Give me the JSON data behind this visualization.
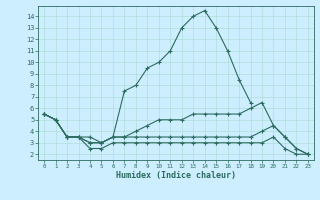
{
  "xlabel": "Humidex (Indice chaleur)",
  "bg_color": "#cceeff",
  "line_color": "#2d6b5e",
  "grid_color": "#b0ddd8",
  "xlim": [
    -0.5,
    23.5
  ],
  "ylim": [
    1.5,
    14.9
  ],
  "xticks": [
    0,
    1,
    2,
    3,
    4,
    5,
    6,
    7,
    8,
    9,
    10,
    11,
    12,
    13,
    14,
    15,
    16,
    17,
    18,
    19,
    20,
    21,
    22,
    23
  ],
  "yticks": [
    2,
    3,
    4,
    5,
    6,
    7,
    8,
    9,
    10,
    11,
    12,
    13,
    14
  ],
  "series": [
    {
      "x": [
        0,
        1,
        2,
        3,
        4,
        5,
        6,
        7,
        8,
        9,
        10,
        11,
        12,
        13,
        14,
        15,
        16,
        17,
        18
      ],
      "y": [
        5.5,
        5.0,
        3.5,
        3.5,
        3.0,
        3.0,
        3.5,
        7.5,
        8.0,
        9.5,
        10.0,
        11.0,
        13.0,
        14.0,
        14.5,
        13.0,
        11.0,
        8.5,
        6.5
      ]
    },
    {
      "x": [
        0,
        1,
        2,
        3,
        4,
        5,
        6,
        7,
        8,
        9,
        10,
        11,
        12,
        13,
        14,
        15,
        16,
        17,
        18,
        19,
        20,
        21,
        22,
        23
      ],
      "y": [
        5.5,
        5.0,
        3.5,
        3.5,
        3.0,
        3.0,
        3.5,
        3.5,
        4.0,
        4.5,
        5.0,
        5.0,
        5.0,
        5.5,
        5.5,
        5.5,
        5.5,
        5.5,
        6.0,
        6.5,
        4.5,
        3.5,
        2.5,
        2.0
      ]
    },
    {
      "x": [
        0,
        1,
        2,
        3,
        4,
        5,
        6,
        7,
        8,
        9,
        10,
        11,
        12,
        13,
        14,
        15,
        16,
        17,
        18,
        19,
        20,
        21,
        22,
        23
      ],
      "y": [
        5.5,
        5.0,
        3.5,
        3.5,
        3.5,
        3.0,
        3.5,
        3.5,
        3.5,
        3.5,
        3.5,
        3.5,
        3.5,
        3.5,
        3.5,
        3.5,
        3.5,
        3.5,
        3.5,
        4.0,
        4.5,
        3.5,
        2.5,
        2.0
      ]
    },
    {
      "x": [
        0,
        1,
        2,
        3,
        4,
        5,
        6,
        7,
        8,
        9,
        10,
        11,
        12,
        13,
        14,
        15,
        16,
        17,
        18,
        19,
        20,
        21,
        22,
        23
      ],
      "y": [
        5.5,
        5.0,
        3.5,
        3.5,
        2.5,
        2.5,
        3.0,
        3.0,
        3.0,
        3.0,
        3.0,
        3.0,
        3.0,
        3.0,
        3.0,
        3.0,
        3.0,
        3.0,
        3.0,
        3.0,
        3.5,
        2.5,
        2.0,
        2.0
      ]
    }
  ]
}
